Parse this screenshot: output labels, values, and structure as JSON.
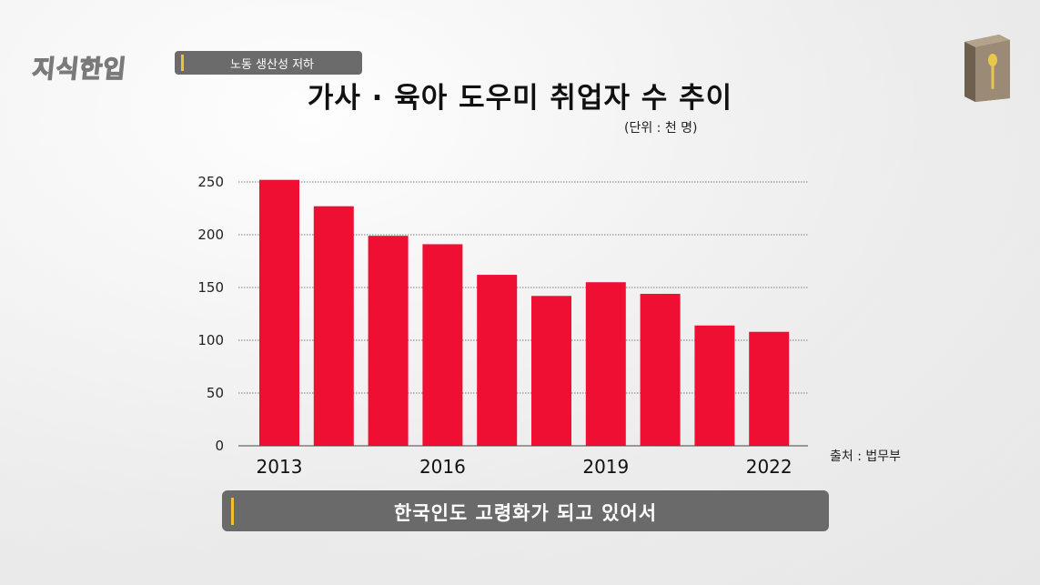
{
  "brand": {
    "logo_text": "지식한입"
  },
  "topic": {
    "label": "노동 생산성 저하"
  },
  "icons": {
    "book": "book-spoon-icon"
  },
  "colors": {
    "bar": "#ee0f33",
    "accent": "#f2c12e",
    "pill": "#6b6b6b"
  },
  "chart_data": {
    "type": "bar",
    "title": "가사 · 육아 도우미 취업자 수 추이",
    "unit_note": "(단위 : 천 명)",
    "source": "출처 : 법무부",
    "categories": [
      "2013",
      "2014",
      "2015",
      "2016",
      "2017",
      "2018",
      "2019",
      "2020",
      "2021",
      "2022"
    ],
    "x_tick_labels": [
      "2013",
      "",
      "",
      "2016",
      "",
      "",
      "2019",
      "",
      "",
      "2022"
    ],
    "values": [
      252,
      227,
      199,
      191,
      162,
      142,
      155,
      144,
      114,
      108
    ],
    "ylim": [
      0,
      250
    ],
    "yticks": [
      0,
      50,
      100,
      150,
      200,
      250
    ],
    "grid": true,
    "xlabel": "",
    "ylabel": ""
  },
  "caption": {
    "text": "한국인도 고령화가 되고 있어서"
  }
}
